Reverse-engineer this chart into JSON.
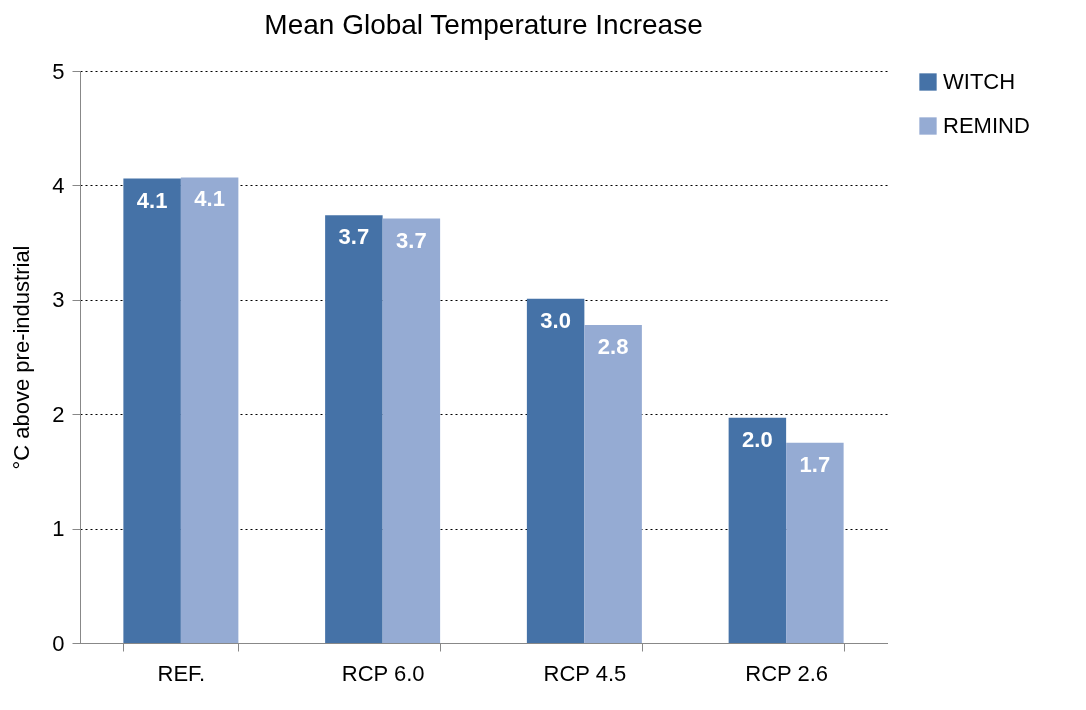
{
  "chart_data": {
    "type": "bar",
    "title": "Mean Global Temperature Increase",
    "ylabel": "°C above pre-industrial",
    "categories": [
      "REF.",
      "RCP 6.0",
      "RCP 4.5",
      "RCP 2.6"
    ],
    "series": [
      {
        "name": "WITCH",
        "color": "#4572a7",
        "values": [
          4.06,
          3.74,
          3.01,
          1.97
        ],
        "value_labels": [
          "4.1",
          "3.7",
          "3.0",
          "2.0"
        ]
      },
      {
        "name": "REMIND",
        "color": "#95abd3",
        "values": [
          4.07,
          3.71,
          2.78,
          1.75
        ],
        "value_labels": [
          "4.1",
          "3.7",
          "2.8",
          "1.7"
        ]
      }
    ],
    "ylim": [
      0,
      5
    ],
    "yticks": [
      0,
      1,
      2,
      3,
      4,
      5
    ],
    "grid": "y",
    "legend": "right"
  }
}
